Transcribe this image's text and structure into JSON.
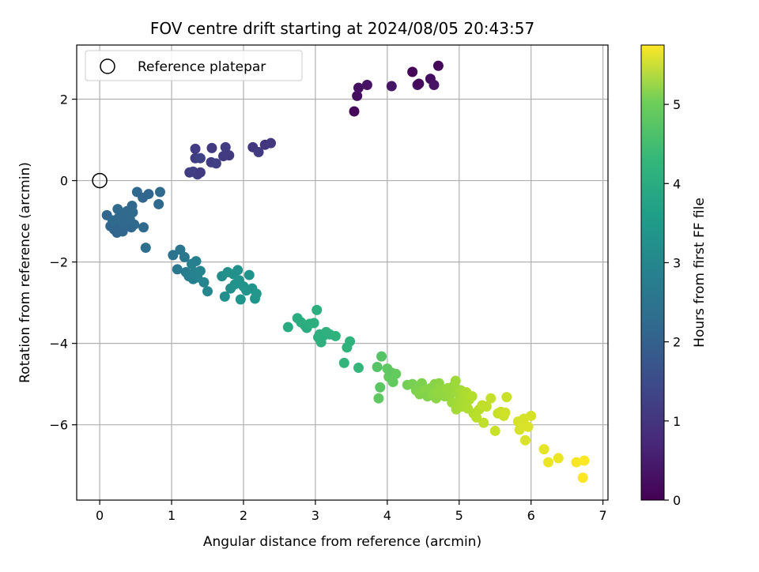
{
  "chart_data": {
    "type": "scatter",
    "title": "FOV centre drift starting at 2024/08/05 20:43:57",
    "xlabel": "Angular distance from reference (arcmin)",
    "ylabel": "Rotation from reference (arcmin)",
    "xlim": [
      -0.32,
      7.07
    ],
    "ylim": [
      -7.85,
      3.33
    ],
    "xticks": [
      "0",
      "1",
      "2",
      "3",
      "4",
      "5",
      "6",
      "7"
    ],
    "yticks": [
      "2",
      "0",
      "−2",
      "−4",
      "−6"
    ],
    "grid": true,
    "legend": {
      "placement": "top-left",
      "entries": [
        "Reference platepar"
      ]
    },
    "reference_point": {
      "x": 0,
      "y": 0
    },
    "colorbar": {
      "label": "Hours from first FF file",
      "colormap": "viridis",
      "range": [
        0,
        5.75
      ],
      "ticks": [
        "0",
        "1",
        "2",
        "3",
        "4",
        "5"
      ]
    },
    "points": [
      {
        "x": 3.54,
        "y": 1.7,
        "t": 0.1
      },
      {
        "x": 3.58,
        "y": 2.08,
        "t": 0.2
      },
      {
        "x": 3.6,
        "y": 2.28,
        "t": 0.25
      },
      {
        "x": 3.72,
        "y": 2.35,
        "t": 0.3
      },
      {
        "x": 4.06,
        "y": 2.32,
        "t": 0.35
      },
      {
        "x": 4.35,
        "y": 2.67,
        "t": 0.05
      },
      {
        "x": 4.42,
        "y": 2.35,
        "t": 0.4
      },
      {
        "x": 4.44,
        "y": 2.38,
        "t": 0.15
      },
      {
        "x": 4.6,
        "y": 2.5,
        "t": 0.2
      },
      {
        "x": 4.65,
        "y": 2.35,
        "t": 0.3
      },
      {
        "x": 4.71,
        "y": 2.82,
        "t": 0.1
      },
      {
        "x": 1.25,
        "y": 0.2,
        "t": 1.0
      },
      {
        "x": 1.3,
        "y": 0.22,
        "t": 1.1
      },
      {
        "x": 1.33,
        "y": 0.55,
        "t": 1.05
      },
      {
        "x": 1.33,
        "y": 0.78,
        "t": 1.0
      },
      {
        "x": 1.36,
        "y": 0.15,
        "t": 1.1
      },
      {
        "x": 1.4,
        "y": 0.2,
        "t": 1.0
      },
      {
        "x": 1.4,
        "y": 0.55,
        "t": 1.15
      },
      {
        "x": 1.55,
        "y": 0.45,
        "t": 1.05
      },
      {
        "x": 1.56,
        "y": 0.8,
        "t": 1.0
      },
      {
        "x": 1.62,
        "y": 0.42,
        "t": 1.1
      },
      {
        "x": 1.72,
        "y": 0.6,
        "t": 1.0
      },
      {
        "x": 1.75,
        "y": 0.82,
        "t": 1.05
      },
      {
        "x": 1.8,
        "y": 0.62,
        "t": 1.0
      },
      {
        "x": 2.13,
        "y": 0.82,
        "t": 0.95
      },
      {
        "x": 2.21,
        "y": 0.7,
        "t": 1.0
      },
      {
        "x": 2.3,
        "y": 0.88,
        "t": 0.9
      },
      {
        "x": 2.38,
        "y": 0.92,
        "t": 0.95
      },
      {
        "x": 0.1,
        "y": -0.85,
        "t": 1.9
      },
      {
        "x": 0.15,
        "y": -1.12,
        "t": 1.9
      },
      {
        "x": 0.18,
        "y": -0.98,
        "t": 1.95
      },
      {
        "x": 0.2,
        "y": -1.2,
        "t": 1.9
      },
      {
        "x": 0.22,
        "y": -1.05,
        "t": 2.0
      },
      {
        "x": 0.24,
        "y": -1.28,
        "t": 1.85
      },
      {
        "x": 0.25,
        "y": -0.7,
        "t": 2.0
      },
      {
        "x": 0.26,
        "y": -0.92,
        "t": 1.95
      },
      {
        "x": 0.28,
        "y": -1.15,
        "t": 1.9
      },
      {
        "x": 0.3,
        "y": -1.0,
        "t": 2.0
      },
      {
        "x": 0.32,
        "y": -1.25,
        "t": 1.9
      },
      {
        "x": 0.35,
        "y": -0.85,
        "t": 1.95
      },
      {
        "x": 0.36,
        "y": -1.1,
        "t": 1.9
      },
      {
        "x": 0.38,
        "y": -0.75,
        "t": 2.0
      },
      {
        "x": 0.4,
        "y": -1.05,
        "t": 1.95
      },
      {
        "x": 0.42,
        "y": -0.95,
        "t": 2.0
      },
      {
        "x": 0.44,
        "y": -1.15,
        "t": 1.9
      },
      {
        "x": 0.45,
        "y": -0.62,
        "t": 1.95
      },
      {
        "x": 0.46,
        "y": -0.78,
        "t": 2.0
      },
      {
        "x": 0.48,
        "y": -1.08,
        "t": 1.95
      },
      {
        "x": 0.52,
        "y": -0.28,
        "t": 1.95
      },
      {
        "x": 0.6,
        "y": -0.42,
        "t": 1.9
      },
      {
        "x": 0.61,
        "y": -1.15,
        "t": 2.0
      },
      {
        "x": 0.64,
        "y": -1.65,
        "t": 2.1
      },
      {
        "x": 0.68,
        "y": -0.33,
        "t": 1.9
      },
      {
        "x": 0.82,
        "y": -0.58,
        "t": 1.95
      },
      {
        "x": 0.84,
        "y": -0.28,
        "t": 2.0
      },
      {
        "x": 1.02,
        "y": -1.83,
        "t": 2.2
      },
      {
        "x": 1.08,
        "y": -2.18,
        "t": 2.3
      },
      {
        "x": 1.12,
        "y": -1.7,
        "t": 2.25
      },
      {
        "x": 1.18,
        "y": -1.88,
        "t": 2.3
      },
      {
        "x": 1.2,
        "y": -2.25,
        "t": 2.4
      },
      {
        "x": 1.24,
        "y": -2.35,
        "t": 2.45
      },
      {
        "x": 1.28,
        "y": -2.05,
        "t": 2.5
      },
      {
        "x": 1.3,
        "y": -2.42,
        "t": 2.5
      },
      {
        "x": 1.32,
        "y": -2.25,
        "t": 2.55
      },
      {
        "x": 1.34,
        "y": -1.98,
        "t": 2.5
      },
      {
        "x": 1.36,
        "y": -2.38,
        "t": 2.55
      },
      {
        "x": 1.4,
        "y": -2.22,
        "t": 2.6
      },
      {
        "x": 1.45,
        "y": -2.5,
        "t": 2.6
      },
      {
        "x": 1.5,
        "y": -2.72,
        "t": 2.65
      },
      {
        "x": 1.7,
        "y": -2.35,
        "t": 2.8
      },
      {
        "x": 1.74,
        "y": -2.85,
        "t": 2.85
      },
      {
        "x": 1.78,
        "y": -2.25,
        "t": 2.9
      },
      {
        "x": 1.82,
        "y": -2.65,
        "t": 2.85
      },
      {
        "x": 1.86,
        "y": -2.3,
        "t": 2.9
      },
      {
        "x": 1.88,
        "y": -2.55,
        "t": 2.95
      },
      {
        "x": 1.92,
        "y": -2.2,
        "t": 2.9
      },
      {
        "x": 1.94,
        "y": -2.45,
        "t": 2.95
      },
      {
        "x": 1.96,
        "y": -2.92,
        "t": 3.0
      },
      {
        "x": 2.0,
        "y": -2.6,
        "t": 2.95
      },
      {
        "x": 2.04,
        "y": -2.7,
        "t": 3.0
      },
      {
        "x": 2.08,
        "y": -2.32,
        "t": 2.95
      },
      {
        "x": 2.12,
        "y": -2.65,
        "t": 3.0
      },
      {
        "x": 2.16,
        "y": -2.9,
        "t": 3.0
      },
      {
        "x": 2.18,
        "y": -2.78,
        "t": 3.05
      },
      {
        "x": 2.62,
        "y": -3.6,
        "t": 3.5
      },
      {
        "x": 2.75,
        "y": -3.38,
        "t": 3.55
      },
      {
        "x": 2.8,
        "y": -3.48,
        "t": 3.55
      },
      {
        "x": 2.85,
        "y": -3.55,
        "t": 3.6
      },
      {
        "x": 2.88,
        "y": -3.62,
        "t": 3.55
      },
      {
        "x": 2.92,
        "y": -3.52,
        "t": 3.6
      },
      {
        "x": 2.98,
        "y": -3.5,
        "t": 3.6
      },
      {
        "x": 3.02,
        "y": -3.18,
        "t": 3.6
      },
      {
        "x": 3.04,
        "y": -3.85,
        "t": 3.6
      },
      {
        "x": 3.06,
        "y": -3.78,
        "t": 3.65
      },
      {
        "x": 3.08,
        "y": -3.97,
        "t": 3.65
      },
      {
        "x": 3.12,
        "y": -3.8,
        "t": 3.6
      },
      {
        "x": 3.15,
        "y": -3.72,
        "t": 3.65
      },
      {
        "x": 3.2,
        "y": -3.78,
        "t": 3.65
      },
      {
        "x": 3.28,
        "y": -3.82,
        "t": 3.7
      },
      {
        "x": 3.4,
        "y": -4.48,
        "t": 3.75
      },
      {
        "x": 3.44,
        "y": -4.1,
        "t": 3.7
      },
      {
        "x": 3.48,
        "y": -3.95,
        "t": 3.7
      },
      {
        "x": 3.6,
        "y": -4.6,
        "t": 3.8
      },
      {
        "x": 3.86,
        "y": -4.58,
        "t": 4.2
      },
      {
        "x": 3.88,
        "y": -5.35,
        "t": 4.3
      },
      {
        "x": 3.9,
        "y": -5.08,
        "t": 4.25
      },
      {
        "x": 3.92,
        "y": -4.32,
        "t": 4.2
      },
      {
        "x": 4.0,
        "y": -4.62,
        "t": 4.3
      },
      {
        "x": 4.02,
        "y": -4.82,
        "t": 4.35
      },
      {
        "x": 4.06,
        "y": -4.72,
        "t": 4.3
      },
      {
        "x": 4.08,
        "y": -4.95,
        "t": 4.35
      },
      {
        "x": 4.12,
        "y": -4.75,
        "t": 4.35
      },
      {
        "x": 4.28,
        "y": -5.02,
        "t": 4.5
      },
      {
        "x": 4.35,
        "y": -5.0,
        "t": 4.55
      },
      {
        "x": 4.4,
        "y": -5.15,
        "t": 4.6
      },
      {
        "x": 4.45,
        "y": -5.25,
        "t": 4.65
      },
      {
        "x": 4.48,
        "y": -4.98,
        "t": 4.6
      },
      {
        "x": 4.52,
        "y": -5.15,
        "t": 4.7
      },
      {
        "x": 4.56,
        "y": -5.3,
        "t": 4.65
      },
      {
        "x": 4.6,
        "y": -5.1,
        "t": 4.7
      },
      {
        "x": 4.64,
        "y": -5.25,
        "t": 4.75
      },
      {
        "x": 4.66,
        "y": -5.0,
        "t": 4.7
      },
      {
        "x": 4.68,
        "y": -5.35,
        "t": 4.75
      },
      {
        "x": 4.7,
        "y": -5.2,
        "t": 4.8
      },
      {
        "x": 4.72,
        "y": -4.98,
        "t": 4.75
      },
      {
        "x": 4.76,
        "y": -5.15,
        "t": 4.8
      },
      {
        "x": 4.8,
        "y": -5.3,
        "t": 4.8
      },
      {
        "x": 4.84,
        "y": -5.1,
        "t": 4.85
      },
      {
        "x": 4.88,
        "y": -5.25,
        "t": 4.85
      },
      {
        "x": 4.9,
        "y": -5.45,
        "t": 4.9
      },
      {
        "x": 4.92,
        "y": -5.05,
        "t": 4.85
      },
      {
        "x": 4.95,
        "y": -4.92,
        "t": 4.9
      },
      {
        "x": 4.96,
        "y": -5.62,
        "t": 4.95
      },
      {
        "x": 4.98,
        "y": -5.2,
        "t": 4.9
      },
      {
        "x": 5.0,
        "y": -5.4,
        "t": 4.95
      },
      {
        "x": 5.02,
        "y": -5.15,
        "t": 4.95
      },
      {
        "x": 5.04,
        "y": -5.55,
        "t": 5.0
      },
      {
        "x": 5.06,
        "y": -5.3,
        "t": 5.0
      },
      {
        "x": 5.08,
        "y": -5.45,
        "t": 5.0
      },
      {
        "x": 5.1,
        "y": -5.2,
        "t": 5.05
      },
      {
        "x": 5.12,
        "y": -5.6,
        "t": 5.05
      },
      {
        "x": 5.14,
        "y": -5.38,
        "t": 5.05
      },
      {
        "x": 5.18,
        "y": -5.3,
        "t": 5.1
      },
      {
        "x": 5.2,
        "y": -5.72,
        "t": 5.1
      },
      {
        "x": 5.24,
        "y": -5.82,
        "t": 5.15
      },
      {
        "x": 5.28,
        "y": -5.62,
        "t": 5.15
      },
      {
        "x": 5.32,
        "y": -5.52,
        "t": 5.2
      },
      {
        "x": 5.34,
        "y": -5.95,
        "t": 5.2
      },
      {
        "x": 5.38,
        "y": -5.55,
        "t": 5.2
      },
      {
        "x": 5.44,
        "y": -5.35,
        "t": 5.25
      },
      {
        "x": 5.5,
        "y": -6.15,
        "t": 5.3
      },
      {
        "x": 5.54,
        "y": -5.72,
        "t": 5.25
      },
      {
        "x": 5.58,
        "y": -5.68,
        "t": 5.3
      },
      {
        "x": 5.62,
        "y": -5.78,
        "t": 5.3
      },
      {
        "x": 5.64,
        "y": -5.7,
        "t": 5.35
      },
      {
        "x": 5.66,
        "y": -5.32,
        "t": 5.3
      },
      {
        "x": 5.82,
        "y": -5.92,
        "t": 5.4
      },
      {
        "x": 5.84,
        "y": -6.12,
        "t": 5.4
      },
      {
        "x": 5.88,
        "y": -5.98,
        "t": 5.45
      },
      {
        "x": 5.9,
        "y": -5.85,
        "t": 5.4
      },
      {
        "x": 5.92,
        "y": -6.38,
        "t": 5.45
      },
      {
        "x": 5.96,
        "y": -6.05,
        "t": 5.45
      },
      {
        "x": 6.0,
        "y": -5.78,
        "t": 5.4
      },
      {
        "x": 6.18,
        "y": -6.6,
        "t": 5.55
      },
      {
        "x": 6.24,
        "y": -6.92,
        "t": 5.6
      },
      {
        "x": 6.38,
        "y": -6.82,
        "t": 5.6
      },
      {
        "x": 6.63,
        "y": -6.92,
        "t": 5.7
      },
      {
        "x": 6.72,
        "y": -7.3,
        "t": 5.75
      },
      {
        "x": 6.74,
        "y": -6.88,
        "t": 5.72
      }
    ]
  }
}
